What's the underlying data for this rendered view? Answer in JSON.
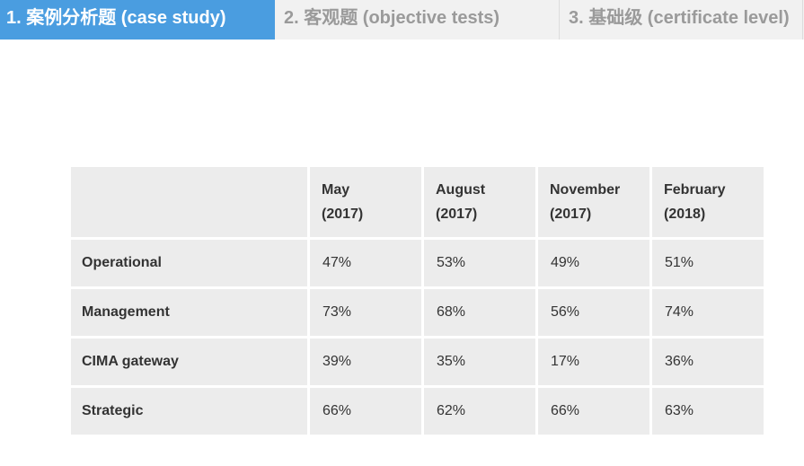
{
  "tabs": [
    {
      "label": "1. 案例分析题 (case study)",
      "active": true
    },
    {
      "label": "2. 客观题 (objective tests)",
      "active": false
    },
    {
      "label": "3. 基础级 (certificate level)",
      "active": false
    }
  ],
  "colors": {
    "tab_active_bg": "#4a9de0",
    "tab_inactive_bg": "#f1f1f1",
    "cell_bg": "#ececec"
  },
  "table": {
    "columns": [
      {
        "line1": "May",
        "line2": "(2017)"
      },
      {
        "line1": "August",
        "line2": "(2017)"
      },
      {
        "line1": "November",
        "line2": "(2017)"
      },
      {
        "line1": "February",
        "line2": "(2018)"
      }
    ],
    "rows": [
      {
        "label": "Operational",
        "values": [
          "47%",
          "53%",
          "49%",
          "51%"
        ]
      },
      {
        "label": "Management",
        "values": [
          "73%",
          "68%",
          "56%",
          "74%"
        ]
      },
      {
        "label": "CIMA gateway",
        "values": [
          "39%",
          "35%",
          "17%",
          "36%"
        ]
      },
      {
        "label": "Strategic",
        "values": [
          "66%",
          "62%",
          "66%",
          "63%"
        ]
      }
    ]
  }
}
